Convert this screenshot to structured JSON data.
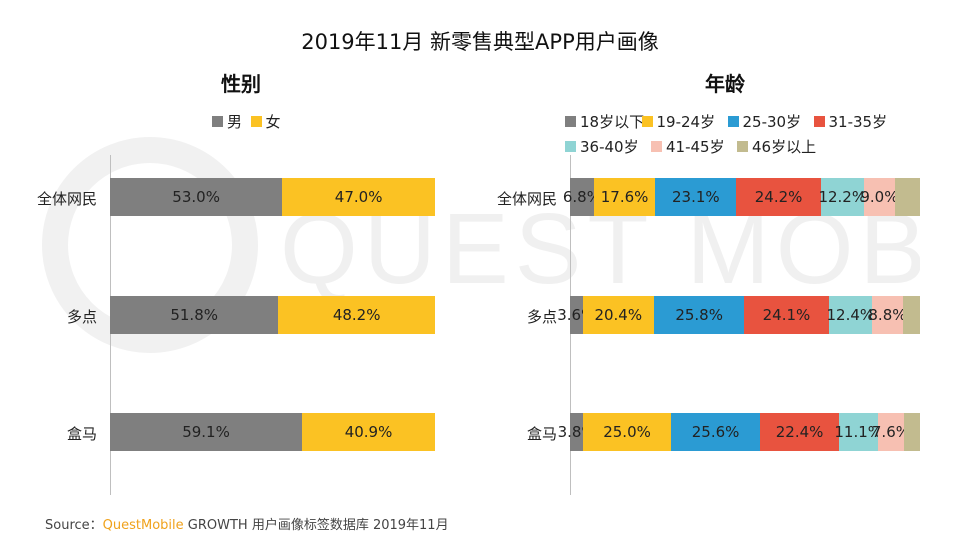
{
  "main_title": "2019年11月 新零售典型APP用户画像",
  "source": {
    "prefix": "Source：",
    "brand": "QuestMobile",
    "rest": " GROWTH 用户画像标签数据库  2019年11月"
  },
  "watermark": "QUEST MOBILE",
  "chart_data": [
    {
      "type": "bar",
      "stacked": true,
      "orientation": "horizontal",
      "percent": true,
      "title": "性别",
      "categories": [
        "全体网民",
        "多点",
        "盒马"
      ],
      "series": [
        {
          "name": "男",
          "color": "#7f7f7f",
          "values": [
            53.0,
            51.8,
            59.1
          ],
          "labels": [
            "53.0%",
            "51.8%",
            "59.1%"
          ]
        },
        {
          "name": "女",
          "color": "#fbc223",
          "values": [
            47.0,
            48.2,
            40.9
          ],
          "labels": [
            "47.0%",
            "48.2%",
            "40.9%"
          ]
        }
      ],
      "xlim": [
        0,
        100
      ],
      "legend": "top"
    },
    {
      "type": "bar",
      "stacked": true,
      "orientation": "horizontal",
      "percent": true,
      "title": "年龄",
      "categories": [
        "全体网民",
        "多点",
        "盒马"
      ],
      "series": [
        {
          "name": "18岁以下",
          "color": "#7f7f7f",
          "values": [
            6.8,
            3.6,
            3.8
          ],
          "labels": [
            "6.8%",
            "3.6%",
            "3.8%"
          ]
        },
        {
          "name": "19-24岁",
          "color": "#fbc223",
          "values": [
            17.6,
            20.4,
            25.0
          ],
          "labels": [
            "17.6%",
            "20.4%",
            "25.0%"
          ]
        },
        {
          "name": "25-30岁",
          "color": "#2b9bd3",
          "values": [
            23.1,
            25.8,
            25.6
          ],
          "labels": [
            "23.1%",
            "25.8%",
            "25.6%"
          ]
        },
        {
          "name": "31-35岁",
          "color": "#e8533f",
          "values": [
            24.2,
            24.1,
            22.4
          ],
          "labels": [
            "24.2%",
            "24.1%",
            "22.4%"
          ]
        },
        {
          "name": "36-40岁",
          "color": "#8fd4d4",
          "values": [
            12.2,
            12.4,
            11.1
          ],
          "labels": [
            "12.2%",
            "12.4%",
            "11.1%"
          ]
        },
        {
          "name": "41-45岁",
          "color": "#f7c0b2",
          "values": [
            9.0,
            8.8,
            7.6
          ],
          "labels": [
            "9.0%",
            "8.8%",
            "7.6%"
          ]
        },
        {
          "name": "46岁以上",
          "color": "#c2bb8f",
          "values": [
            7.1,
            4.9,
            4.5
          ],
          "labels": [
            "",
            "",
            ""
          ]
        }
      ],
      "xlim": [
        0,
        100
      ],
      "legend": "top"
    }
  ]
}
